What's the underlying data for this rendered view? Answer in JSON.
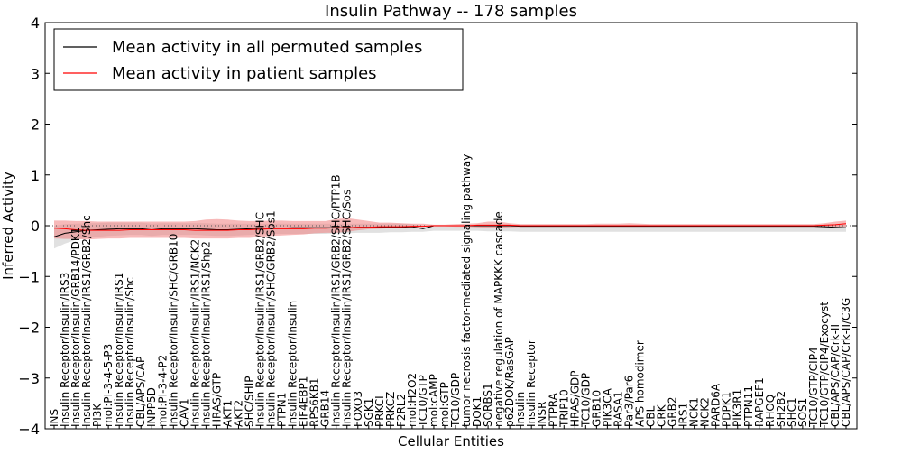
{
  "chart_data": {
    "type": "line",
    "title": "Insulin Pathway -- 178 samples",
    "xlabel": "Cellular Entities",
    "ylabel": "Inferred Activity",
    "ylim": [
      -4,
      4
    ],
    "yticks": [
      -4,
      -3,
      -2,
      -1,
      0,
      1,
      2,
      3,
      4
    ],
    "ytick_labels": [
      "−4",
      "−3",
      "−2",
      "−1",
      "0",
      "1",
      "2",
      "3",
      "4"
    ],
    "legend": {
      "placement": "top-left",
      "entries": [
        {
          "label": "Mean activity in all permuted samples",
          "color": "#000000"
        },
        {
          "label": "Mean activity in patient samples",
          "color": "#ff0000"
        }
      ]
    },
    "reference_line": {
      "y": 0,
      "style": "dotted"
    },
    "categories": [
      "INS",
      "Insulin Receptor/Insulin/IRS3",
      "Insulin Receptor/Insulin/GRB14/PDK1",
      "Insulin Receptor/Insulin/IRS1/GRB2/Shc",
      "PI3K",
      "mol:PI-3-4-5-P3",
      "Insulin Receptor/Insulin/IRS1",
      "Insulin Receptor/Insulin/Shc",
      "CBL/APS/CAP",
      "INPP5D",
      "mol:PI-3-4-P2",
      "Insulin Receptor/Insulin/SHC/GRB10",
      "CAV1",
      "Insulin Receptor/Insulin/IRS1/NCK2",
      "Insulin Receptor/Insulin/IRS1/Shp2",
      "HRAS/GTP",
      "AKT1",
      "AKT2",
      "SHC/SHIP",
      "Insulin Receptor/Insulin/IRS1/GRB2/SHC",
      "Insulin Receptor/Insulin/SHC/GRB2/Sos1",
      "PTPN1",
      "Insulin Receptor/Insulin",
      "EIF4EBP1",
      "RPS6KB1",
      "GRB14",
      "Insulin Receptor/Insulin/IRS1/GRB2/SHC/PTP1B",
      "Insulin Receptor/Insulin/IRS1/GRB2/SHC/Sos",
      "FOXO3",
      "SGK1",
      "PRKCI",
      "PRKCZ",
      "F2RL2",
      "mol:H2O2",
      "TC10/GTP",
      "mol:cAMP",
      "mol:GTP",
      "TC10/GDP",
      "tumor necrosis factor-mediated signaling pathway",
      "DOK1",
      "SORBS1",
      "negative regulation of MAPKKK cascade",
      "p62DOK/RasGAP",
      "Insulin",
      "Insulin Receptor",
      "INSR",
      "PTPRA",
      "TRIP10",
      "HRAS/GDP",
      "TC10/GDP",
      "GRB10",
      "PIK3CA",
      "RASA1",
      "Par3/Par6",
      "APS homodimer",
      "CBL",
      "CRK",
      "GRB2",
      "IRS1",
      "NCK1",
      "NCK2",
      "PARD6A",
      "PDPK1",
      "PIK3R1",
      "PTPN11",
      "RAPGEF1",
      "RHOQ",
      "SH2B2",
      "SHC1",
      "SOS1",
      "TC10/GTP/CIP4",
      "TC10/GTP/CIP4/Exocyst",
      "CBL/APS/CAP/Crk-II",
      "CBL/APS/CAP/Crk-II/C3G"
    ],
    "series": [
      {
        "name": "Mean activity in all permuted samples",
        "color": "#000000",
        "band_color": "#c8c8c8",
        "values": [
          -0.22,
          -0.15,
          -0.12,
          -0.09,
          -0.08,
          -0.07,
          -0.06,
          -0.06,
          -0.06,
          -0.08,
          -0.06,
          -0.06,
          -0.06,
          -0.06,
          -0.07,
          -0.08,
          -0.08,
          -0.07,
          -0.06,
          -0.05,
          -0.05,
          -0.05,
          -0.04,
          -0.04,
          -0.04,
          -0.04,
          -0.04,
          -0.04,
          -0.03,
          -0.03,
          -0.03,
          -0.03,
          -0.03,
          -0.02,
          -0.06,
          0.0,
          0.0,
          0.0,
          0.0,
          0.0,
          0.0,
          0.0,
          0.0,
          -0.01,
          -0.01,
          -0.01,
          -0.01,
          -0.01,
          -0.01,
          -0.01,
          -0.01,
          -0.01,
          -0.01,
          -0.01,
          -0.01,
          -0.01,
          -0.01,
          -0.01,
          -0.01,
          -0.01,
          -0.01,
          -0.01,
          -0.01,
          -0.01,
          -0.01,
          -0.01,
          -0.01,
          -0.01,
          -0.01,
          -0.01,
          -0.01,
          -0.02,
          -0.03,
          -0.04
        ],
        "upper": [
          0.0,
          0.03,
          0.04,
          0.05,
          0.05,
          0.06,
          0.06,
          0.06,
          0.06,
          0.04,
          0.05,
          0.05,
          0.05,
          0.05,
          0.05,
          0.04,
          0.04,
          0.04,
          0.04,
          0.04,
          0.04,
          0.04,
          0.04,
          0.04,
          0.04,
          0.04,
          0.04,
          0.04,
          0.04,
          0.04,
          0.04,
          0.04,
          0.04,
          0.03,
          0.0,
          0.01,
          0.01,
          0.01,
          0.01,
          0.01,
          0.02,
          0.02,
          0.02,
          0.02,
          0.02,
          0.02,
          0.02,
          0.02,
          0.02,
          0.02,
          0.02,
          0.02,
          0.02,
          0.02,
          0.02,
          0.02,
          0.02,
          0.02,
          0.02,
          0.02,
          0.02,
          0.02,
          0.02,
          0.02,
          0.02,
          0.02,
          0.02,
          0.02,
          0.02,
          0.02,
          0.02,
          0.02,
          0.02,
          0.02
        ],
        "lower": [
          -0.45,
          -0.35,
          -0.28,
          -0.24,
          -0.22,
          -0.2,
          -0.19,
          -0.18,
          -0.18,
          -0.2,
          -0.18,
          -0.18,
          -0.18,
          -0.18,
          -0.19,
          -0.2,
          -0.2,
          -0.19,
          -0.18,
          -0.17,
          -0.16,
          -0.16,
          -0.16,
          -0.16,
          -0.16,
          -0.16,
          -0.15,
          -0.15,
          -0.14,
          -0.14,
          -0.14,
          -0.13,
          -0.13,
          -0.12,
          -0.12,
          -0.1,
          -0.1,
          -0.1,
          -0.1,
          -0.1,
          -0.11,
          -0.11,
          -0.11,
          -0.12,
          -0.12,
          -0.12,
          -0.12,
          -0.12,
          -0.12,
          -0.12,
          -0.12,
          -0.12,
          -0.12,
          -0.12,
          -0.12,
          -0.12,
          -0.12,
          -0.12,
          -0.12,
          -0.12,
          -0.12,
          -0.12,
          -0.12,
          -0.12,
          -0.12,
          -0.12,
          -0.12,
          -0.12,
          -0.12,
          -0.12,
          -0.12,
          -0.12,
          -0.12,
          -0.12
        ]
      },
      {
        "name": "Mean activity in patient samples",
        "color": "#ff0000",
        "band_color": "#f08080",
        "values": [
          -0.05,
          -0.06,
          -0.08,
          -0.09,
          -0.09,
          -0.09,
          -0.09,
          -0.08,
          -0.08,
          -0.08,
          -0.08,
          -0.08,
          -0.08,
          -0.09,
          -0.09,
          -0.09,
          -0.09,
          -0.08,
          -0.08,
          -0.07,
          -0.06,
          -0.06,
          -0.06,
          -0.06,
          -0.05,
          -0.05,
          -0.04,
          -0.04,
          -0.03,
          -0.03,
          -0.02,
          -0.02,
          -0.02,
          -0.01,
          -0.01,
          0.0,
          0.0,
          0.0,
          0.0,
          0.01,
          0.01,
          0.01,
          0.01,
          0.0,
          0.0,
          0.0,
          0.0,
          0.0,
          0.0,
          0.0,
          0.0,
          0.0,
          0.0,
          0.0,
          0.0,
          0.0,
          0.0,
          0.0,
          0.0,
          0.0,
          0.0,
          0.0,
          0.0,
          0.0,
          0.0,
          0.0,
          0.0,
          0.0,
          0.0,
          0.0,
          0.0,
          0.01,
          0.02,
          0.04
        ],
        "upper": [
          0.1,
          0.1,
          0.09,
          0.09,
          0.08,
          0.08,
          0.08,
          0.08,
          0.08,
          0.08,
          0.08,
          0.08,
          0.08,
          0.09,
          0.12,
          0.13,
          0.12,
          0.1,
          0.09,
          0.09,
          0.1,
          0.1,
          0.09,
          0.09,
          0.09,
          0.09,
          0.13,
          0.15,
          0.12,
          0.09,
          0.06,
          0.06,
          0.05,
          0.04,
          0.04,
          0.02,
          0.02,
          0.03,
          0.04,
          0.05,
          0.08,
          0.08,
          0.05,
          0.03,
          0.03,
          0.03,
          0.03,
          0.03,
          0.03,
          0.03,
          0.04,
          0.04,
          0.04,
          0.05,
          0.04,
          0.03,
          0.03,
          0.03,
          0.03,
          0.03,
          0.03,
          0.03,
          0.03,
          0.03,
          0.03,
          0.03,
          0.03,
          0.03,
          0.03,
          0.03,
          0.03,
          0.05,
          0.08,
          0.1
        ],
        "lower": [
          -0.25,
          -0.26,
          -0.26,
          -0.27,
          -0.26,
          -0.25,
          -0.25,
          -0.24,
          -0.24,
          -0.24,
          -0.24,
          -0.24,
          -0.24,
          -0.25,
          -0.25,
          -0.25,
          -0.25,
          -0.24,
          -0.24,
          -0.22,
          -0.2,
          -0.19,
          -0.18,
          -0.17,
          -0.15,
          -0.14,
          -0.14,
          -0.12,
          -0.09,
          -0.07,
          -0.06,
          -0.05,
          -0.05,
          -0.04,
          -0.02,
          -0.01,
          -0.01,
          -0.02,
          -0.02,
          -0.03,
          -0.04,
          -0.04,
          -0.03,
          -0.02,
          -0.02,
          -0.02,
          -0.02,
          -0.02,
          -0.02,
          -0.02,
          -0.02,
          -0.02,
          -0.02,
          -0.02,
          -0.02,
          -0.02,
          -0.02,
          -0.02,
          -0.02,
          -0.02,
          -0.02,
          -0.02,
          -0.02,
          -0.02,
          -0.02,
          -0.02,
          -0.02,
          -0.02,
          -0.02,
          -0.02,
          -0.02,
          -0.03,
          -0.02,
          -0.02
        ]
      }
    ]
  }
}
